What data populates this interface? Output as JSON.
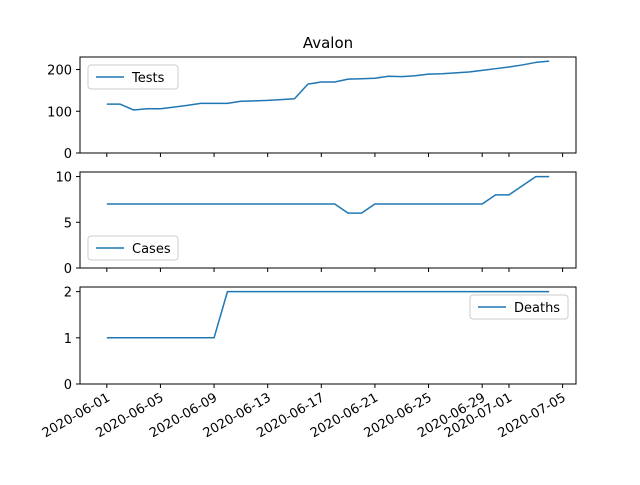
{
  "figure": {
    "title": "Avalon"
  },
  "colors": {
    "line": "#1f77b4",
    "axis": "#000000",
    "legend_border": "#cccccc",
    "background": "#ffffff"
  },
  "chart_data": [
    {
      "type": "line",
      "title": "Avalon",
      "legend_position": "upper-left",
      "xlabel": "",
      "ylabel": "",
      "ylim": [
        0,
        230
      ],
      "yticks": [
        0,
        100,
        200
      ],
      "series": [
        {
          "name": "Tests",
          "x": [
            "2020-06-01",
            "2020-06-02",
            "2020-06-03",
            "2020-06-04",
            "2020-06-05",
            "2020-06-06",
            "2020-06-07",
            "2020-06-08",
            "2020-06-09",
            "2020-06-10",
            "2020-06-11",
            "2020-06-12",
            "2020-06-13",
            "2020-06-14",
            "2020-06-15",
            "2020-06-16",
            "2020-06-17",
            "2020-06-18",
            "2020-06-19",
            "2020-06-20",
            "2020-06-21",
            "2020-06-22",
            "2020-06-23",
            "2020-06-24",
            "2020-06-25",
            "2020-06-26",
            "2020-06-27",
            "2020-06-28",
            "2020-06-29",
            "2020-06-30",
            "2020-07-01",
            "2020-07-02",
            "2020-07-03",
            "2020-07-04"
          ],
          "values": [
            117,
            117,
            103,
            106,
            106,
            110,
            114,
            119,
            119,
            119,
            124,
            125,
            126,
            128,
            130,
            165,
            170,
            170,
            177,
            178,
            179,
            184,
            183,
            185,
            189,
            190,
            192,
            194,
            198,
            202,
            206,
            211,
            217,
            220
          ]
        }
      ]
    },
    {
      "type": "line",
      "legend_position": "lower-left",
      "xlabel": "",
      "ylabel": "",
      "ylim": [
        0,
        10.5
      ],
      "yticks": [
        0,
        5,
        10
      ],
      "series": [
        {
          "name": "Cases",
          "x": [
            "2020-06-01",
            "2020-06-02",
            "2020-06-03",
            "2020-06-04",
            "2020-06-05",
            "2020-06-06",
            "2020-06-07",
            "2020-06-08",
            "2020-06-09",
            "2020-06-10",
            "2020-06-11",
            "2020-06-12",
            "2020-06-13",
            "2020-06-14",
            "2020-06-15",
            "2020-06-16",
            "2020-06-17",
            "2020-06-18",
            "2020-06-19",
            "2020-06-20",
            "2020-06-21",
            "2020-06-22",
            "2020-06-23",
            "2020-06-24",
            "2020-06-25",
            "2020-06-26",
            "2020-06-27",
            "2020-06-28",
            "2020-06-29",
            "2020-06-30",
            "2020-07-01",
            "2020-07-02",
            "2020-07-03",
            "2020-07-04"
          ],
          "values": [
            7,
            7,
            7,
            7,
            7,
            7,
            7,
            7,
            7,
            7,
            7,
            7,
            7,
            7,
            7,
            7,
            7,
            7,
            6,
            6,
            7,
            7,
            7,
            7,
            7,
            7,
            7,
            7,
            7,
            8,
            8,
            9,
            10,
            10
          ]
        }
      ]
    },
    {
      "type": "line",
      "legend_position": "upper-right",
      "xlabel": "",
      "ylabel": "",
      "ylim": [
        0,
        2.1
      ],
      "yticks": [
        0,
        1,
        2
      ],
      "xlim": [
        "2020-05-30",
        "2020-07-06"
      ],
      "xticks": [
        "2020-06-01",
        "2020-06-05",
        "2020-06-09",
        "2020-06-13",
        "2020-06-17",
        "2020-06-21",
        "2020-06-25",
        "2020-06-29",
        "2020-07-01",
        "2020-07-05"
      ],
      "series": [
        {
          "name": "Deaths",
          "x": [
            "2020-06-01",
            "2020-06-02",
            "2020-06-03",
            "2020-06-04",
            "2020-06-05",
            "2020-06-06",
            "2020-06-07",
            "2020-06-08",
            "2020-06-09",
            "2020-06-10",
            "2020-06-11",
            "2020-06-12",
            "2020-06-13",
            "2020-06-14",
            "2020-06-15",
            "2020-06-16",
            "2020-06-17",
            "2020-06-18",
            "2020-06-19",
            "2020-06-20",
            "2020-06-21",
            "2020-06-22",
            "2020-06-23",
            "2020-06-24",
            "2020-06-25",
            "2020-06-26",
            "2020-06-27",
            "2020-06-28",
            "2020-06-29",
            "2020-06-30",
            "2020-07-01",
            "2020-07-02",
            "2020-07-03",
            "2020-07-04"
          ],
          "values": [
            1,
            1,
            1,
            1,
            1,
            1,
            1,
            1,
            1,
            2,
            2,
            2,
            2,
            2,
            2,
            2,
            2,
            2,
            2,
            2,
            2,
            2,
            2,
            2,
            2,
            2,
            2,
            2,
            2,
            2,
            2,
            2,
            2,
            2
          ]
        }
      ]
    }
  ]
}
